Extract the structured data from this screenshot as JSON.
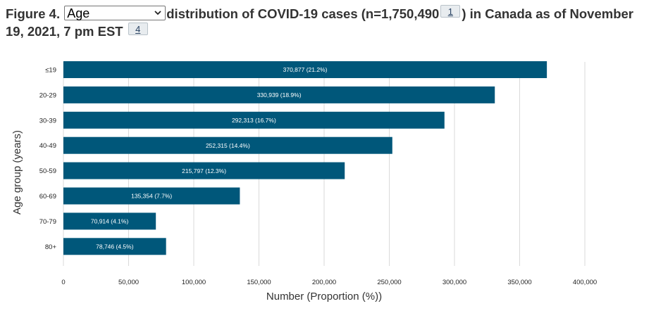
{
  "figure": {
    "prefix": "Figure 4.",
    "select_value": "Age",
    "title_part1": "distribution of COVID-19 cases (n=1,750,490",
    "footnote1": "1",
    "title_part2": ") in Canada as of November 19, 2021, 7 pm EST",
    "footnote2": "4"
  },
  "chart_data": {
    "type": "bar",
    "orientation": "horizontal",
    "categories": [
      "≤19",
      "20-29",
      "30-39",
      "40-49",
      "50-59",
      "60-69",
      "70-79",
      "80+"
    ],
    "values": [
      370877,
      330939,
      292313,
      252315,
      215797,
      135354,
      70914,
      78746
    ],
    "data_labels": [
      "370,877 (21.2%)",
      "330,939 (18.9%)",
      "292,313 (16.7%)",
      "252,315 (14.4%)",
      "215,797 (12.3%)",
      "135,354 (7.7%)",
      "70,914 (4.1%)",
      "78,746 (4.5%)"
    ],
    "xticks": [
      0,
      50000,
      100000,
      150000,
      200000,
      250000,
      300000,
      350000,
      400000
    ],
    "xtick_labels": [
      "0",
      "50,000",
      "100,000",
      "150,000",
      "200,000",
      "250,000",
      "300,000",
      "350,000",
      "400,000"
    ],
    "xlim": [
      0,
      400000
    ],
    "xlabel": "Number (Proportion (%))",
    "ylabel": "Age group (years)",
    "grid": "vertical",
    "bar_color": "#00577a"
  }
}
